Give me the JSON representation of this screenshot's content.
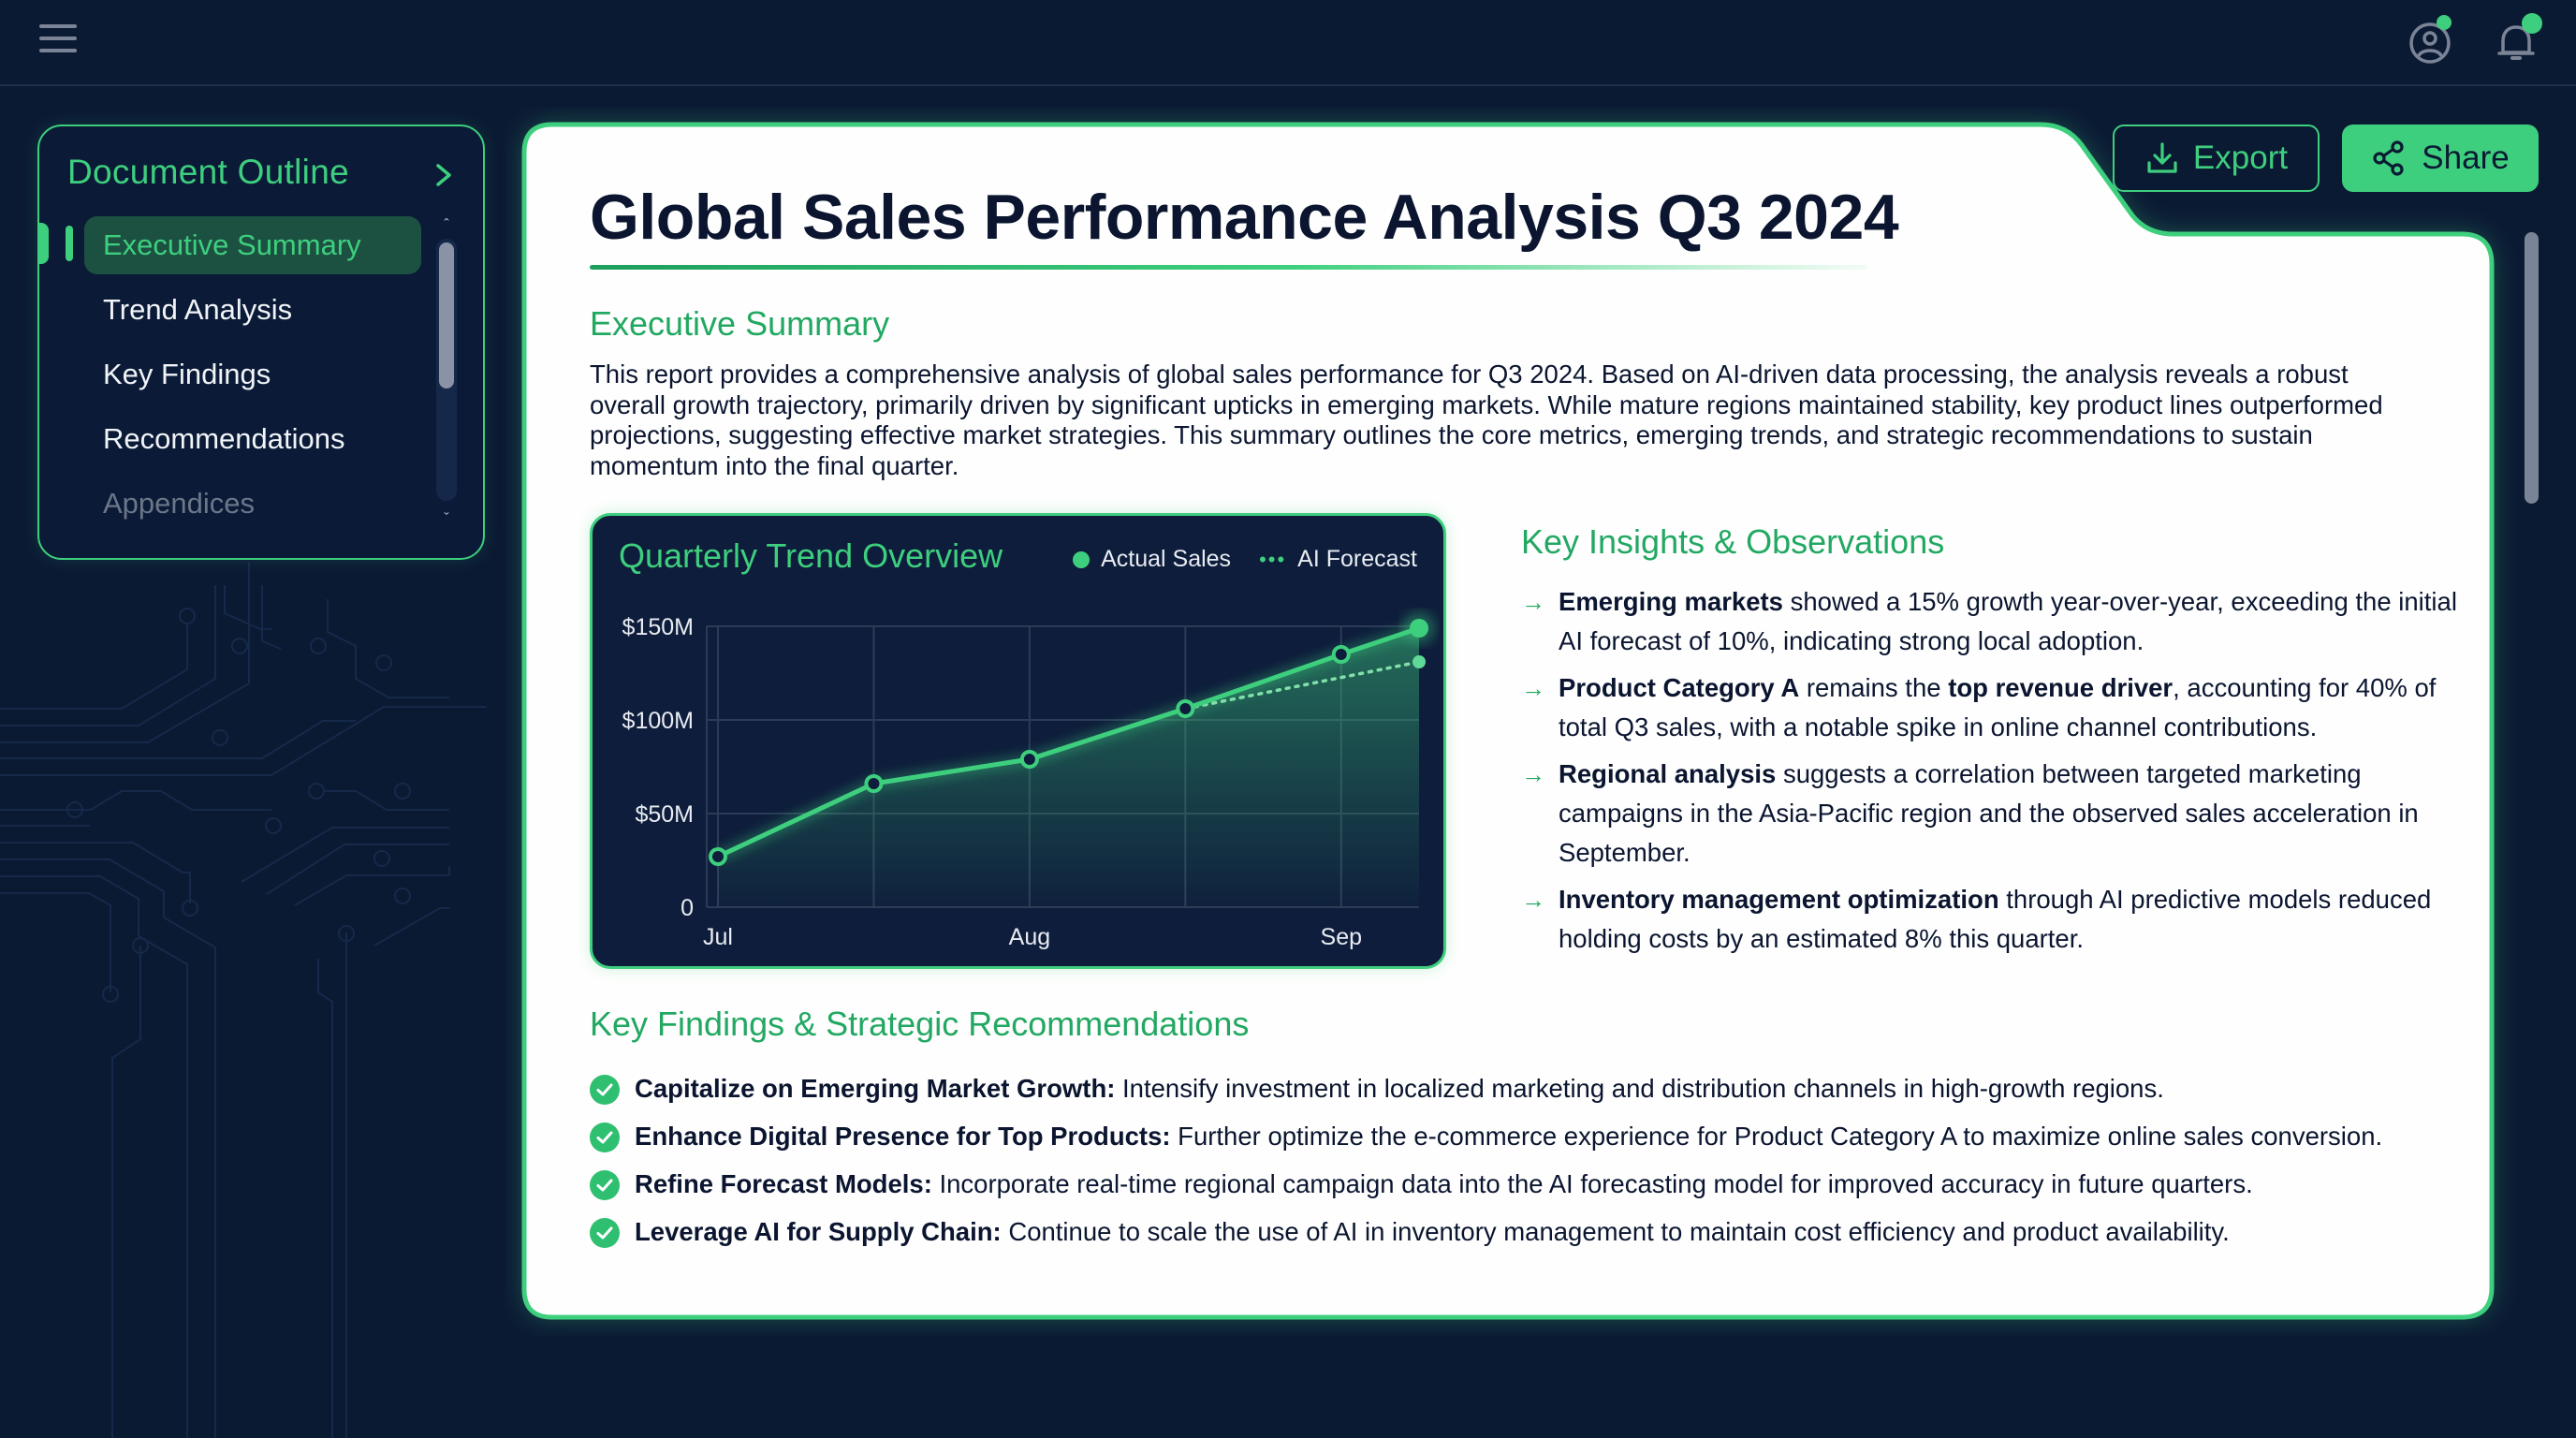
{
  "topbar": {
    "menu_icon": "hamburger-menu-icon",
    "user_icon": "user-profile-icon",
    "notification_icon": "bell-icon",
    "status_color": "#3ecf7e"
  },
  "sidebar": {
    "title": "Document Outline",
    "collapse_icon": "chevron-right-icon",
    "items": [
      {
        "label": "Executive Summary",
        "active": true
      },
      {
        "label": "Trend Analysis",
        "active": false
      },
      {
        "label": "Key Findings",
        "active": false
      },
      {
        "label": "Recommendations",
        "active": false
      },
      {
        "label": "Appendices",
        "active": false
      }
    ]
  },
  "toolbar": {
    "export_label": "Export",
    "export_icon": "download-icon",
    "share_label": "Share",
    "share_icon": "share-icon"
  },
  "document": {
    "title": "Global Sales Performance Analysis Q3 2024",
    "executive_summary": {
      "heading": "Executive Summary",
      "body": "This report provides a comprehensive analysis of global sales performance for Q3 2024. Based on AI-driven data processing, the analysis reveals a robust overall growth trajectory, primarily driven by significant upticks in emerging markets. While mature regions maintained stability, key product lines outperformed projections, suggesting effective market strategies. This summary outlines the core metrics, emerging trends, and strategic recommendations to sustain momentum into the final quarter."
    },
    "insights": {
      "heading": "Key Insights & Observations",
      "items": [
        {
          "parts": [
            {
              "b": "Emerging markets"
            },
            {
              "t": " showed a 15% growth year-over-year, exceeding the initial AI forecast of 10%, indicating strong local adoption."
            }
          ]
        },
        {
          "parts": [
            {
              "b": "Product Category A"
            },
            {
              "t": " remains the "
            },
            {
              "b": "top revenue driver"
            },
            {
              "t": ", accounting for 40% of total Q3 sales, with a notable spike in online channel contributions."
            }
          ]
        },
        {
          "parts": [
            {
              "b": "Regional analysis"
            },
            {
              "t": " suggests a correlation between targeted marketing campaigns in the Asia-Pacific region and the observed sales acceleration in September."
            }
          ]
        },
        {
          "parts": [
            {
              "b": "Inventory management optimization"
            },
            {
              "t": " through AI predictive models reduced holding costs by an estimated 8% this quarter."
            }
          ]
        }
      ]
    },
    "recommendations": {
      "heading": "Key Findings & Strategic Recommendations",
      "items": [
        {
          "title": "Capitalize on Emerging Market Growth:",
          "text": " Intensify investment in localized marketing and distribution channels in high-growth regions."
        },
        {
          "title": "Enhance Digital Presence for Top Products:",
          "text": " Further optimize the e-commerce experience for Product Category A to maximize online sales conversion."
        },
        {
          "title": "Refine Forecast Models:",
          "text": " Incorporate real-time regional campaign data into the AI forecasting model for improved accuracy in future quarters."
        },
        {
          "title": "Leverage AI for Supply Chain:",
          "text": " Continue to scale the use of AI in inventory management to maintain cost efficiency and product availability."
        }
      ]
    }
  },
  "chart_data": {
    "type": "line",
    "title": "Quarterly Trend Overview",
    "xlabel": "",
    "ylabel": "",
    "x_tick_labels": [
      "Jul",
      "Aug",
      "Sep"
    ],
    "y_tick_labels": [
      "0",
      "$50M",
      "$100M",
      "$150M"
    ],
    "ylim": [
      0,
      150
    ],
    "grid": true,
    "legend_position": "top-right",
    "x": [
      0,
      1,
      2,
      3,
      4,
      4.5
    ],
    "series": [
      {
        "name": "Actual Sales",
        "style": "solid",
        "color": "#3ecf7e",
        "values": [
          27,
          66,
          79,
          106,
          135,
          149
        ]
      },
      {
        "name": "AI Forecast",
        "style": "dotted",
        "color": "#3ecf7e",
        "x": [
          3,
          4.5
        ],
        "values": [
          106,
          131
        ]
      }
    ],
    "unit": "$M"
  },
  "colors": {
    "accent": "#3ecf7e",
    "background": "#0b1a33",
    "card": "#ffffff",
    "heading_green": "#22a862"
  }
}
